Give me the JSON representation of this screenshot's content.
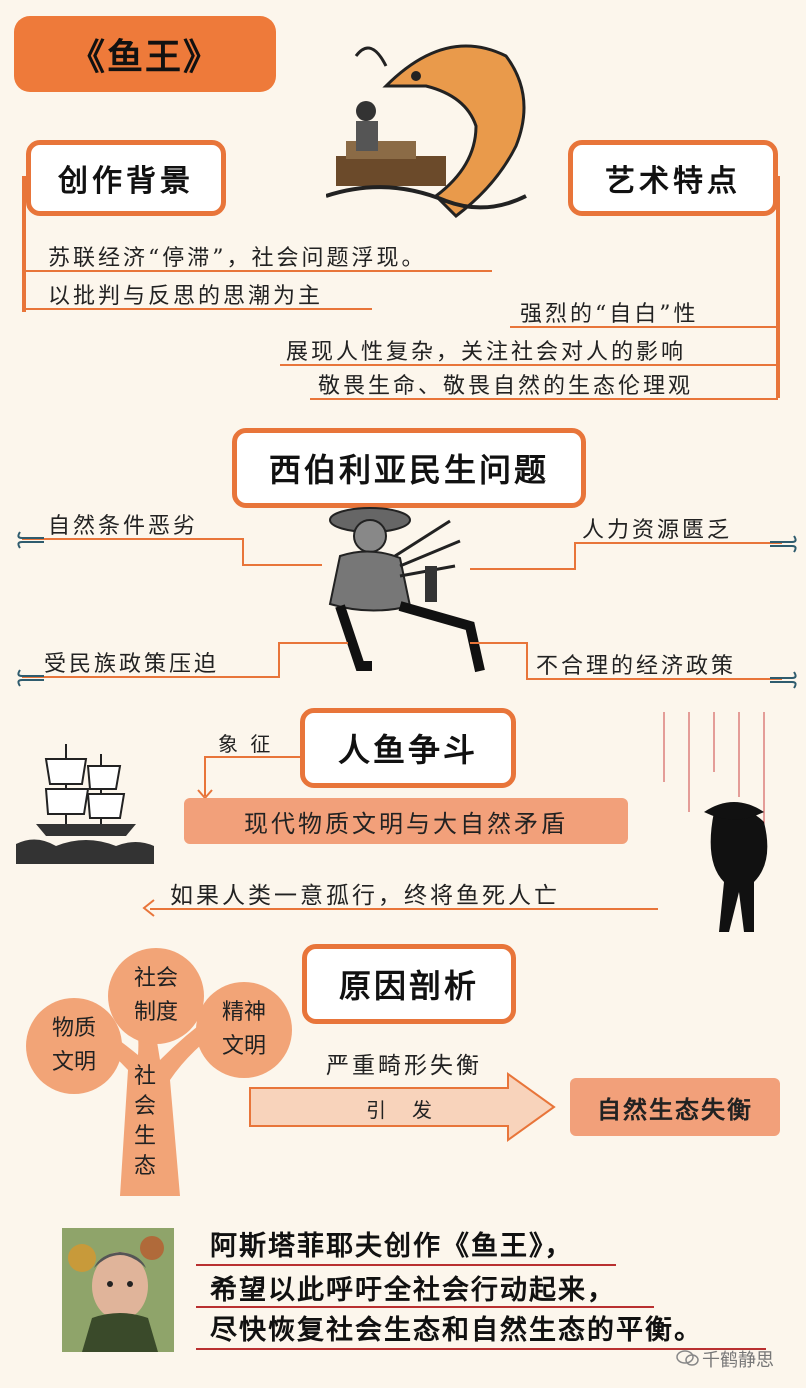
{
  "title": "《鱼王》",
  "section1": {
    "left_heading": "创作背景",
    "right_heading": "艺术特点",
    "background_lines": [
      "苏联经济“停滞”，社会问题浮现。",
      "以批判与反思的思潮为主"
    ],
    "feature_lines": [
      "强烈的“自白”性",
      "展现人性复杂，关注社会对人的影响",
      "敬畏生命、敬畏自然的生态伦理观"
    ]
  },
  "section2": {
    "heading": "西伯利亚民生问题",
    "items": [
      "自然条件恶劣",
      "人力资源匮乏",
      "受民族政策压迫",
      "不合理的经济政策"
    ]
  },
  "section3": {
    "heading": "人鱼争斗",
    "symbol_label": "象 征",
    "symbol_box": "现代物质文明与大自然矛盾",
    "warning": "如果人类一意孤行，终将鱼死人亡"
  },
  "section4": {
    "heading": "原因剖析",
    "tree_circles": [
      "物质文明",
      "社会制度",
      "精神文明"
    ],
    "tree_trunk": "社会生态",
    "arrow_top": "严重畸形失衡",
    "arrow_inner": "引　发",
    "result": "自然生态失衡"
  },
  "conclusion": {
    "lines": [
      "阿斯塔菲耶夫创作《鱼王》，",
      "希望以此呼吁全社会行动起来，",
      "尽快恢复社会生态和自然生态的平衡。"
    ]
  },
  "watermark": "千鹤静思",
  "colors": {
    "accent": "#e8753a",
    "fill": "#f2a07a",
    "background": "#fcf6ec",
    "underline": "#b93030"
  },
  "icons": [
    "fishing-fish-illustration",
    "man-with-arrows-illustration",
    "sailing-ship-illustration",
    "hooks-and-fish-silhouette-illustration",
    "author-portrait",
    "wechat-icon"
  ]
}
